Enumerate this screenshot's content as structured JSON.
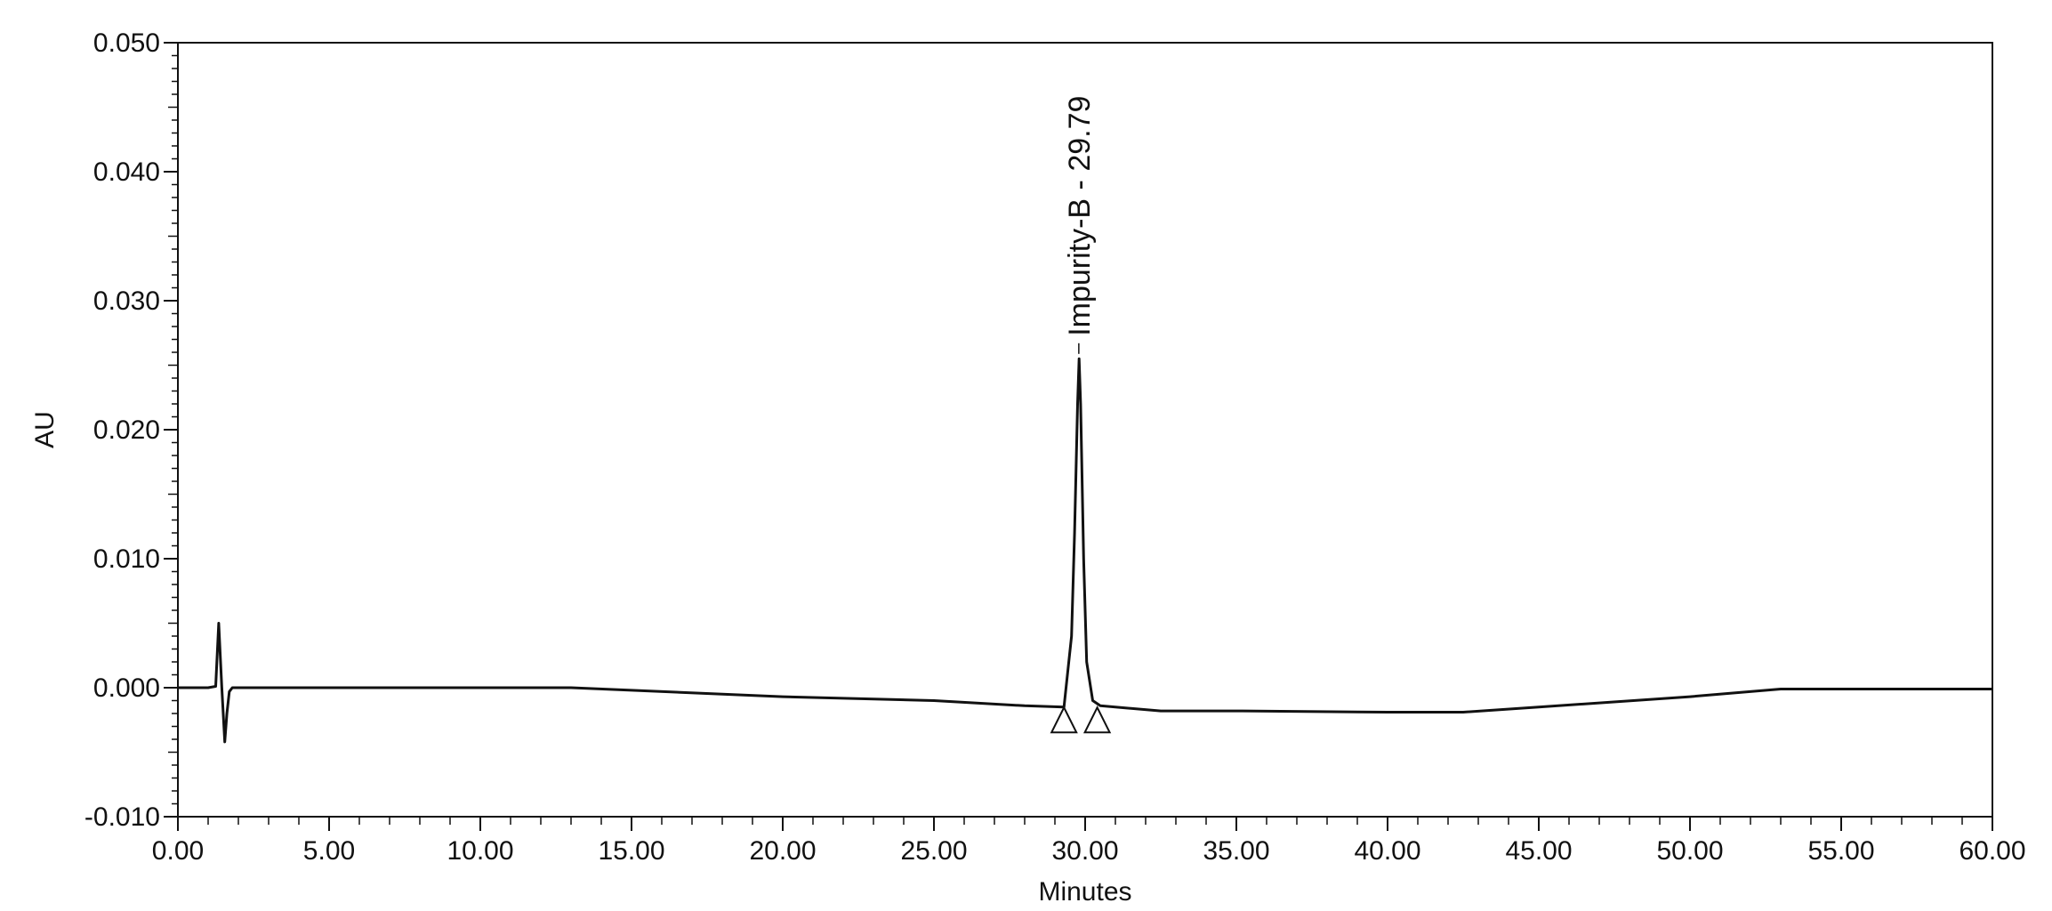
{
  "chart_data": {
    "type": "line",
    "title": "",
    "xlabel": "Minutes",
    "ylabel": "AU",
    "xlim": [
      0,
      60
    ],
    "ylim": [
      -0.01,
      0.05
    ],
    "grid": false,
    "x_ticks": [
      0,
      5,
      10,
      15,
      20,
      25,
      30,
      35,
      40,
      45,
      50,
      55,
      60
    ],
    "x_tick_labels": [
      "0.00",
      "5.00",
      "10.00",
      "15.00",
      "20.00",
      "25.00",
      "30.00",
      "35.00",
      "40.00",
      "45.00",
      "50.00",
      "55.00",
      "60.00"
    ],
    "y_ticks": [
      -0.01,
      0,
      0.01,
      0.02,
      0.03,
      0.04,
      0.05
    ],
    "y_tick_labels": [
      "-0.010",
      "0.000",
      "0.010",
      "0.020",
      "0.030",
      "0.040",
      "0.050"
    ],
    "series": [
      {
        "x": [
          0,
          1.0,
          1.25,
          1.35,
          1.45,
          1.55,
          1.62,
          1.7,
          1.8,
          2.2,
          5,
          10,
          13,
          15,
          20,
          25,
          28,
          29.3,
          29.55,
          29.65,
          29.75,
          29.8,
          29.85,
          29.95,
          30.05,
          30.25,
          30.5,
          32.5,
          35,
          40,
          42.5,
          45,
          50,
          53,
          55,
          60
        ],
        "y": [
          0,
          0,
          0.0001,
          0.005,
          0.0001,
          -0.0042,
          -0.002,
          -0.0003,
          0,
          0,
          0,
          0,
          0,
          -0.0002,
          -0.0007,
          -0.001,
          -0.0014,
          -0.0015,
          0.004,
          0.012,
          0.022,
          0.0255,
          0.022,
          0.01,
          0.002,
          -0.001,
          -0.0014,
          -0.0018,
          -0.0018,
          -0.0019,
          -0.0019,
          -0.0015,
          -0.0007,
          -0.0001,
          -0.0001,
          -0.0001
        ]
      }
    ],
    "peaks": [
      {
        "label": "Impurity-B - 29.79",
        "retention_time": 29.79,
        "apex_au": 0.0256,
        "start_min": 29.3,
        "end_min": 30.4,
        "marker_au": -0.0025
      }
    ]
  }
}
